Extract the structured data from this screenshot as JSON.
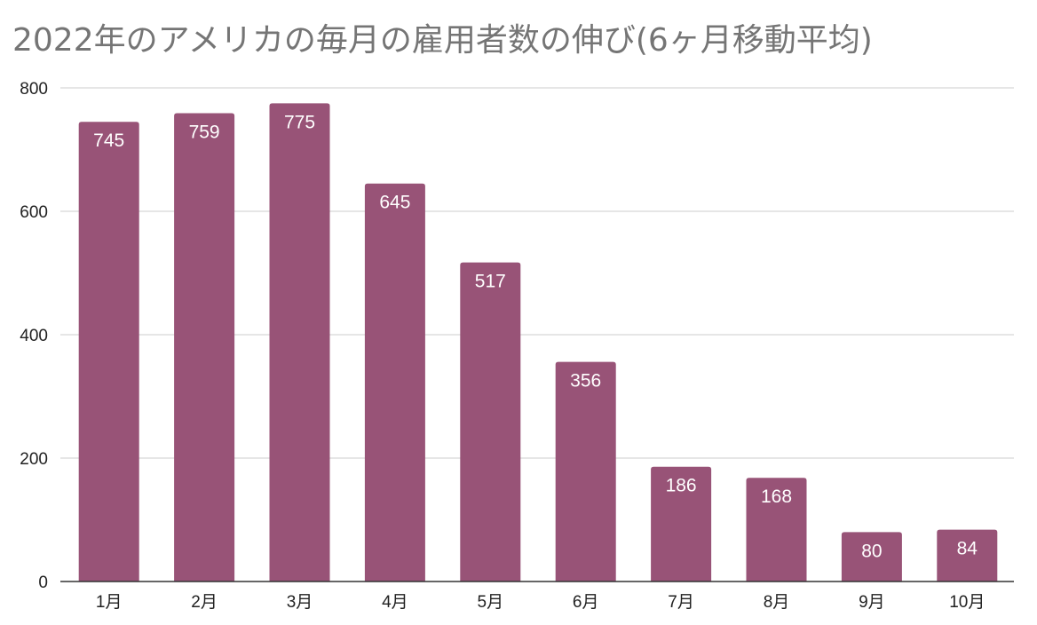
{
  "chart_data": {
    "type": "bar",
    "title": "2022年のアメリカの毎月の雇用者数の伸び(6ヶ月移動平均)",
    "xlabel": "",
    "ylabel": "",
    "categories": [
      "1月",
      "2月",
      "3月",
      "4月",
      "5月",
      "6月",
      "7月",
      "8月",
      "9月",
      "10月"
    ],
    "series": [
      {
        "values": [
          745,
          759,
          775,
          645,
          517,
          356,
          186,
          168,
          80,
          84
        ]
      }
    ],
    "ylim": [
      0,
      800
    ],
    "yticks": [
      0,
      200,
      400,
      600,
      800
    ],
    "grid": true,
    "data_labels": true,
    "bar_color": "#985377",
    "grid_color": "#cccccc",
    "label_color": "#ffffff",
    "title_color": "#757575"
  }
}
